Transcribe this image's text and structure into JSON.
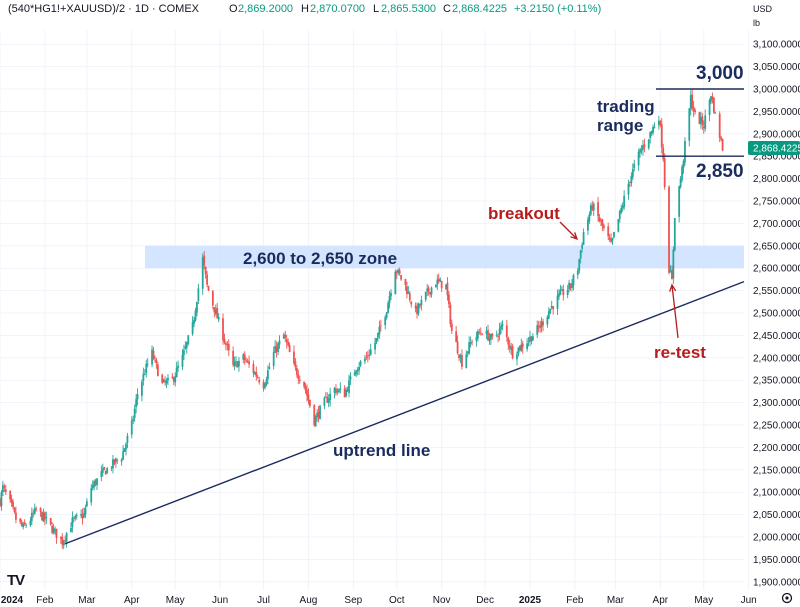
{
  "header": {
    "symbol": "(540*HG1!+XAUUSD)/2 · 1D · COMEX",
    "ohlc": [
      {
        "label": "O",
        "value": "2,869.2000"
      },
      {
        "label": "H",
        "value": "2,870.0700"
      },
      {
        "label": "L",
        "value": "2,865.5300"
      },
      {
        "label": "C",
        "value": "2,868.4225"
      }
    ],
    "change": "+3.2150 (+0.11%)"
  },
  "unit_label": [
    "USD",
    "lb"
  ],
  "colors": {
    "up": "#26a69a",
    "down": "#ef5350",
    "up_last": "#089981",
    "annotation": "#1a2b5e",
    "annotation_red": "#b71c1c",
    "zone": "#cfe2ff",
    "grid": "#f0f3fa",
    "axis_text": "#131722"
  },
  "logo_text": "TV",
  "chart_data": {
    "type": "candlestick",
    "title": "",
    "xlabel": "",
    "ylabel": "",
    "ylim": [
      1880,
      3120
    ],
    "grid": true,
    "y_ticks": [
      "1,900.0000",
      "1,950.0000",
      "2,000.0000",
      "2,050.0000",
      "2,100.0000",
      "2,150.0000",
      "2,200.0000",
      "2,250.0000",
      "2,300.0000",
      "2,350.0000",
      "2,400.0000",
      "2,450.0000",
      "2,500.0000",
      "2,550.0000",
      "2,600.0000",
      "2,650.0000",
      "2,700.0000",
      "2,750.0000",
      "2,800.0000",
      "2,850.0000",
      "2,900.0000",
      "2,950.0000",
      "3,000.0000",
      "3,050.0000",
      "3,100.0000"
    ],
    "x_ticks": [
      {
        "label": "2024",
        "bold": true
      },
      {
        "label": "Feb"
      },
      {
        "label": "Mar"
      },
      {
        "label": "Apr"
      },
      {
        "label": "May"
      },
      {
        "label": "Jun"
      },
      {
        "label": "Jul"
      },
      {
        "label": "Aug"
      },
      {
        "label": "Sep"
      },
      {
        "label": "Oct"
      },
      {
        "label": "Nov"
      },
      {
        "label": "Dec"
      },
      {
        "label": "2025",
        "bold": true
      },
      {
        "label": "Feb"
      },
      {
        "label": "Mar"
      },
      {
        "label": "Apr"
      },
      {
        "label": "May"
      },
      {
        "label": "Jun"
      }
    ],
    "last_price": {
      "label": "2,868.4225",
      "value": 2868.42
    },
    "price_path": [
      [
        "2024-01-01",
        2080
      ],
      [
        "2024-01-03",
        2110
      ],
      [
        "2024-01-08",
        2075
      ],
      [
        "2024-01-12",
        2040
      ],
      [
        "2024-01-17",
        2020
      ],
      [
        "2024-01-22",
        2040
      ],
      [
        "2024-01-26",
        2060
      ],
      [
        "2024-02-01",
        2040
      ],
      [
        "2024-02-08",
        2010
      ],
      [
        "2024-02-13",
        1990
      ],
      [
        "2024-02-20",
        2035
      ],
      [
        "2024-02-28",
        2050
      ],
      [
        "2024-03-04",
        2110
      ],
      [
        "2024-03-11",
        2140
      ],
      [
        "2024-03-18",
        2160
      ],
      [
        "2024-03-25",
        2180
      ],
      [
        "2024-04-01",
        2250
      ],
      [
        "2024-04-05",
        2320
      ],
      [
        "2024-04-10",
        2370
      ],
      [
        "2024-04-15",
        2410
      ],
      [
        "2024-04-22",
        2340
      ],
      [
        "2024-04-29",
        2350
      ],
      [
        "2024-05-06",
        2400
      ],
      [
        "2024-05-13",
        2470
      ],
      [
        "2024-05-20",
        2620
      ],
      [
        "2024-05-23",
        2560
      ],
      [
        "2024-05-28",
        2510
      ],
      [
        "2024-06-04",
        2440
      ],
      [
        "2024-06-10",
        2380
      ],
      [
        "2024-06-17",
        2400
      ],
      [
        "2024-06-24",
        2370
      ],
      [
        "2024-07-01",
        2340
      ],
      [
        "2024-07-08",
        2410
      ],
      [
        "2024-07-15",
        2450
      ],
      [
        "2024-07-22",
        2380
      ],
      [
        "2024-07-29",
        2340
      ],
      [
        "2024-08-05",
        2260
      ],
      [
        "2024-08-12",
        2300
      ],
      [
        "2024-08-19",
        2330
      ],
      [
        "2024-08-26",
        2320
      ],
      [
        "2024-09-03",
        2380
      ],
      [
        "2024-09-10",
        2400
      ],
      [
        "2024-09-17",
        2440
      ],
      [
        "2024-09-24",
        2510
      ],
      [
        "2024-09-30",
        2600
      ],
      [
        "2024-10-07",
        2560
      ],
      [
        "2024-10-14",
        2500
      ],
      [
        "2024-10-21",
        2540
      ],
      [
        "2024-10-28",
        2570
      ],
      [
        "2024-11-04",
        2560
      ],
      [
        "2024-11-08",
        2460
      ],
      [
        "2024-11-15",
        2390
      ],
      [
        "2024-11-22",
        2440
      ],
      [
        "2024-11-29",
        2460
      ],
      [
        "2024-12-06",
        2440
      ],
      [
        "2024-12-13",
        2470
      ],
      [
        "2024-12-20",
        2410
      ],
      [
        "2024-12-31",
        2440
      ],
      [
        "2025-01-08",
        2470
      ],
      [
        "2025-01-15",
        2510
      ],
      [
        "2025-01-22",
        2540
      ],
      [
        "2025-01-29",
        2560
      ],
      [
        "2025-02-03",
        2600
      ],
      [
        "2025-02-07",
        2680
      ],
      [
        "2025-02-13",
        2740
      ],
      [
        "2025-02-19",
        2700
      ],
      [
        "2025-02-26",
        2650
      ],
      [
        "2025-03-04",
        2720
      ],
      [
        "2025-03-11",
        2800
      ],
      [
        "2025-03-18",
        2860
      ],
      [
        "2025-03-25",
        2900
      ],
      [
        "2025-03-31",
        2940
      ],
      [
        "2025-04-03",
        2850
      ],
      [
        "2025-04-07",
        2600
      ],
      [
        "2025-04-09",
        2570
      ],
      [
        "2025-04-11",
        2720
      ],
      [
        "2025-04-16",
        2820
      ],
      [
        "2025-04-22",
        2980
      ],
      [
        "2025-04-25",
        2940
      ],
      [
        "2025-05-01",
        2920
      ],
      [
        "2025-05-06",
        2990
      ],
      [
        "2025-05-09",
        2940
      ],
      [
        "2025-05-14",
        2868
      ]
    ],
    "zone": {
      "from": 2600,
      "to": 2650,
      "label": "2,600 to 2,650 zone"
    },
    "levels": [
      {
        "value": 3000,
        "label": "3,000"
      },
      {
        "value": 2850,
        "label": "2,850"
      }
    ],
    "trendline": {
      "from": [
        "2024-02-15",
        1985
      ],
      "to": [
        "2025-06-30",
        2570
      ],
      "label": "uptrend line"
    },
    "annotations": [
      {
        "text": "trading",
        "kind": "note"
      },
      {
        "text": "range",
        "kind": "note"
      },
      {
        "text": "breakout",
        "kind": "red"
      },
      {
        "text": "re-test",
        "kind": "red"
      }
    ]
  }
}
